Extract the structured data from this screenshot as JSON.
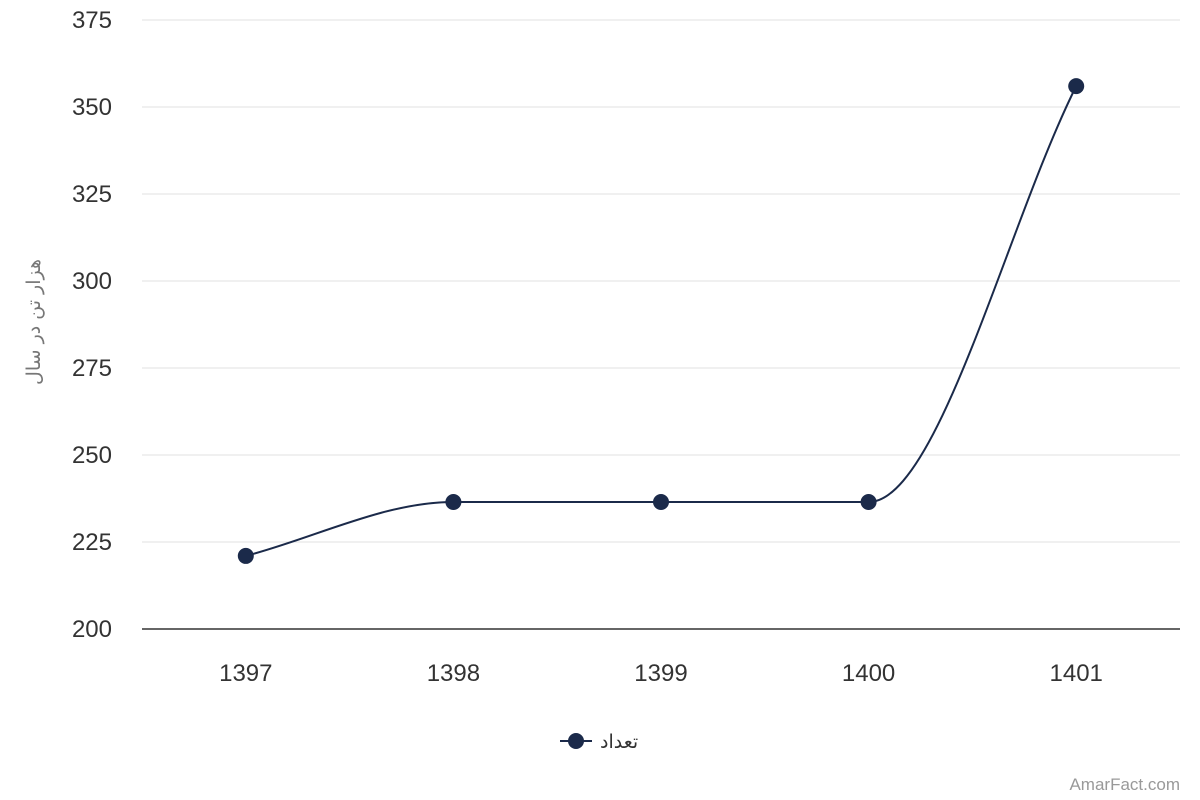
{
  "chart_data": {
    "type": "line",
    "categories": [
      "1397",
      "1398",
      "1399",
      "1400",
      "1401"
    ],
    "series": [
      {
        "name": "تعداد",
        "values": [
          221,
          236.5,
          236.5,
          236.5,
          356
        ]
      }
    ],
    "xlabel": "",
    "ylabel": "هزار تن در سال",
    "ylim": [
      200,
      375
    ],
    "yticks": [
      200,
      225,
      250,
      275,
      300,
      325,
      350,
      375
    ],
    "grid": true,
    "legend": "bottom-center",
    "smooth": true
  },
  "colors": {
    "series": "#1b2a4a",
    "grid": "#e0e0e0",
    "axis": "#333333"
  },
  "credit": "AmarFact.com"
}
